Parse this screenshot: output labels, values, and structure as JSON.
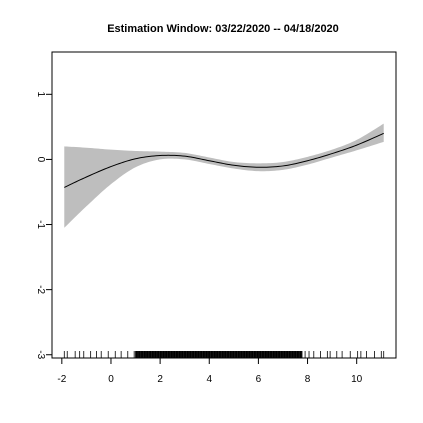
{
  "chart_data": {
    "type": "line",
    "title": "Estimation Window: 03/22/2020 -- 04/18/2020",
    "xlabel": "",
    "ylabel": "",
    "xlim": [
      -2.4,
      11.6
    ],
    "ylim": [
      -3.05,
      1.65
    ],
    "x_ticks": [
      -2,
      0,
      2,
      4,
      6,
      8,
      10
    ],
    "y_ticks": [
      -3,
      -2,
      -1,
      0,
      1
    ],
    "x_tick_labels": [
      "-2",
      "0",
      "2",
      "4",
      "6",
      "8",
      "10"
    ],
    "y_tick_labels": [
      "-3",
      "-2",
      "-1",
      "0",
      "1"
    ],
    "series": [
      {
        "x": [
          -1.9,
          -1,
          0,
          1,
          2,
          3,
          4,
          5,
          6,
          7,
          8,
          9,
          10,
          11.1
        ],
        "y": [
          -0.43,
          -0.27,
          -0.11,
          0.01,
          0.06,
          0.05,
          -0.02,
          -0.09,
          -0.12,
          -0.1,
          -0.02,
          0.09,
          0.22,
          0.4
        ],
        "lower": [
          -1.05,
          -0.72,
          -0.38,
          -0.12,
          0.0,
          0.0,
          -0.07,
          -0.14,
          -0.18,
          -0.16,
          -0.08,
          0.03,
          0.14,
          0.27
        ],
        "upper": [
          0.2,
          0.18,
          0.15,
          0.13,
          0.12,
          0.1,
          0.03,
          -0.04,
          -0.06,
          -0.04,
          0.04,
          0.15,
          0.3,
          0.55
        ]
      }
    ],
    "rug": {
      "x_range": [
        -1.9,
        11.1
      ],
      "dense_range": [
        1.0,
        7.8
      ]
    },
    "colors": {
      "line": "#000000",
      "band": "#bebebe",
      "axis": "#000000"
    },
    "grid": false,
    "legend": "none"
  }
}
